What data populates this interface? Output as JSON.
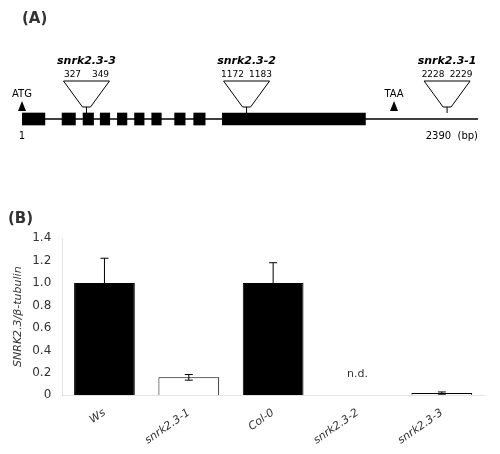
{
  "chart_data": [
    {
      "type": "gene_map",
      "title": "(A)",
      "xlim": [
        0,
        2390
      ],
      "tick_labels": false,
      "grid": false,
      "color": "black",
      "exons": [
        [
          0,
          120
        ],
        [
          210,
          280
        ],
        [
          320,
          375
        ],
        [
          410,
          460
        ],
        [
          500,
          550
        ],
        [
          590,
          640
        ],
        [
          680,
          730
        ],
        [
          800,
          855
        ],
        [
          900,
          960
        ],
        [
          1050,
          1800
        ]
      ],
      "markers": [
        {
          "label": "ATG",
          "x": 0
        },
        {
          "label": "TAA",
          "x": 1950
        }
      ],
      "insertions": [
        {
          "label": "snrk2.3-3",
          "x": 338,
          "positions": [
            327,
            349
          ]
        },
        {
          "label": "snrk2.3-2",
          "x": 1177,
          "positions": [
            1172,
            1183
          ]
        },
        {
          "label": "snrk2.3-1",
          "x": 2228,
          "positions": [
            2228,
            2229
          ]
        }
      ],
      "annotations": [
        {
          "text": "1",
          "x": 0
        },
        {
          "text": "2390  (bp)",
          "x": 2390
        }
      ]
    },
    {
      "type": "bar",
      "title": "(B)",
      "ylabel": "SNRK2.3/β-tubulin",
      "categories": [
        "Ws",
        "snrk2.3-1",
        "Col-0",
        "snrk2.3-2",
        "snrk2.3-3"
      ],
      "values": [
        1.0,
        0.16,
        1.0,
        0.0,
        0.02
      ],
      "errors": [
        0.22,
        0.025,
        0.18,
        0.0,
        0.01
      ],
      "colors": [
        "black",
        "white",
        "black",
        "white",
        "white"
      ],
      "edge_color": "black",
      "ylim": [
        0,
        1.4
      ],
      "yticks": [
        0,
        0.2,
        0.4,
        0.6,
        0.8,
        {
          "value": 1.0,
          "label": "1.0"
        },
        1.2,
        1.4
      ],
      "grid": false,
      "annotations": [
        {
          "text": "n.d.",
          "x": "snrk2.3-2",
          "y": 0.12
        }
      ]
    }
  ]
}
